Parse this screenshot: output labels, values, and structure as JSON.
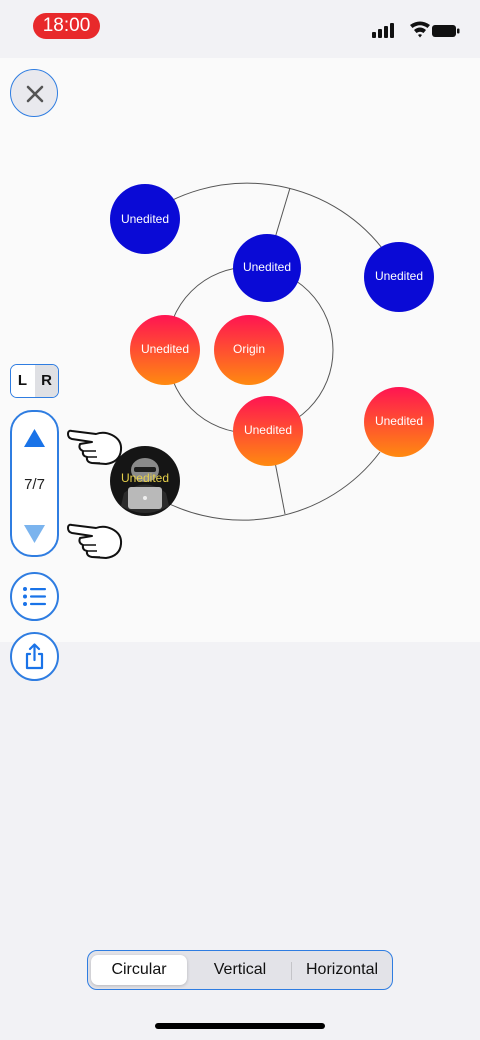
{
  "status_bar": {
    "time": "18:00"
  },
  "toolbar": {
    "lr_toggle": {
      "left": "L",
      "right": "R"
    },
    "page_indicator": "7/7"
  },
  "mindmap": {
    "nodes": [
      {
        "label": "Unedited",
        "style": "blue"
      },
      {
        "label": "Unedited",
        "style": "blue"
      },
      {
        "label": "Unedited",
        "style": "blue"
      },
      {
        "label": "Unedited",
        "style": "gradient"
      },
      {
        "label": "Origin",
        "style": "gradient"
      },
      {
        "label": "Unedited",
        "style": "gradient"
      },
      {
        "label": "Unedited",
        "style": "gradient"
      }
    ],
    "avatar_node_label": "Unedited"
  },
  "layout_switcher": {
    "options": [
      "Circular",
      "Vertical",
      "Horizontal"
    ],
    "selected": "Circular"
  },
  "colors": {
    "accent": "#2f7de1",
    "node_blue": "#0a0ad6",
    "gradient_top": "#ff1452",
    "gradient_bottom": "#ff8a10",
    "status_pill": "#e8292b"
  }
}
